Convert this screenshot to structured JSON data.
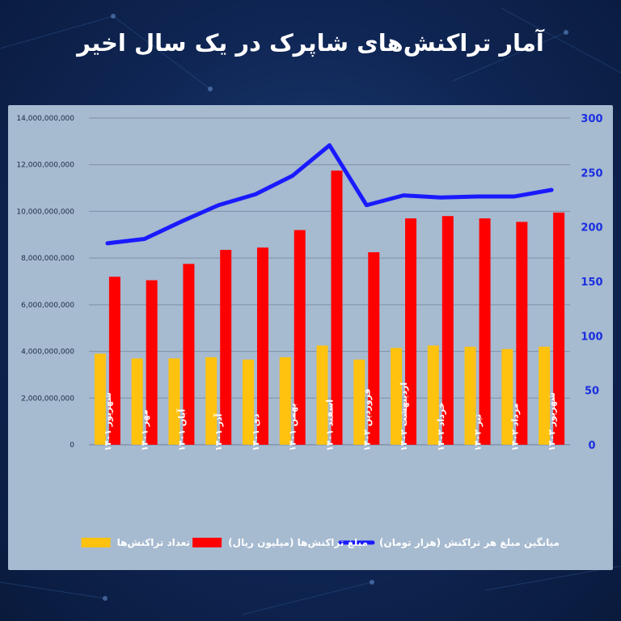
{
  "title": "آمار تراکنش‌های شاپرک در یک سال اخیر",
  "chart_data": {
    "type": "bar",
    "categories": [
      "شهریور ۱۴۰۱",
      "مهر ۱۴۰۱",
      "آبان ۱۴۰۱",
      "آذر ۱۴۰۱",
      "دی ۱۴۰۱",
      "بهمن ۱۴۰۱",
      "اسفند ۱۴۰۱",
      "فروردین ۱۴۰۲",
      "اردیبهشت ۱۴۰۲",
      "خرداد ۱۴۰۲",
      "تیر ۱۴۰۲",
      "مرداد ۱۴۰۲",
      "شهریور ۱۴۰۲"
    ],
    "series": [
      {
        "name": "تعداد تراکنش‌ها",
        "type": "bar",
        "axis": "left",
        "color": "#ffc20e",
        "values": [
          3900000000,
          3700000000,
          3700000000,
          3750000000,
          3650000000,
          3750000000,
          4250000000,
          3650000000,
          4150000000,
          4250000000,
          4200000000,
          4100000000,
          4200000000
        ]
      },
      {
        "name": "مبلغ تراکنش‌ها (میلیون ریال)",
        "type": "bar",
        "axis": "left",
        "color": "#ff0000",
        "values": [
          7200000000,
          7050000000,
          7750000000,
          8350000000,
          8450000000,
          9200000000,
          11750000000,
          8250000000,
          9700000000,
          9800000000,
          9700000000,
          9550000000,
          9950000000
        ]
      },
      {
        "name": "میانگین مبلغ هر تراکنش (هزار تومان)",
        "type": "line",
        "axis": "right",
        "color": "#1a1aff",
        "values": [
          185,
          189,
          205,
          220,
          230,
          247,
          275,
          220,
          229,
          227,
          228,
          228,
          234
        ]
      }
    ],
    "left_axis": {
      "ylim": [
        0,
        14000000000
      ],
      "tick_labels": [
        "0",
        "2,000,000,000",
        "4,000,000,000",
        "6,000,000,000",
        "8,000,000,000",
        "10,000,000,000",
        "12,000,000,000",
        "14,000,000,000"
      ]
    },
    "right_axis": {
      "ylim": [
        0,
        300
      ],
      "tick_labels": [
        "0",
        "50",
        "100",
        "150",
        "200",
        "250",
        "300"
      ]
    },
    "grid": true,
    "legend_position": "bottom"
  }
}
